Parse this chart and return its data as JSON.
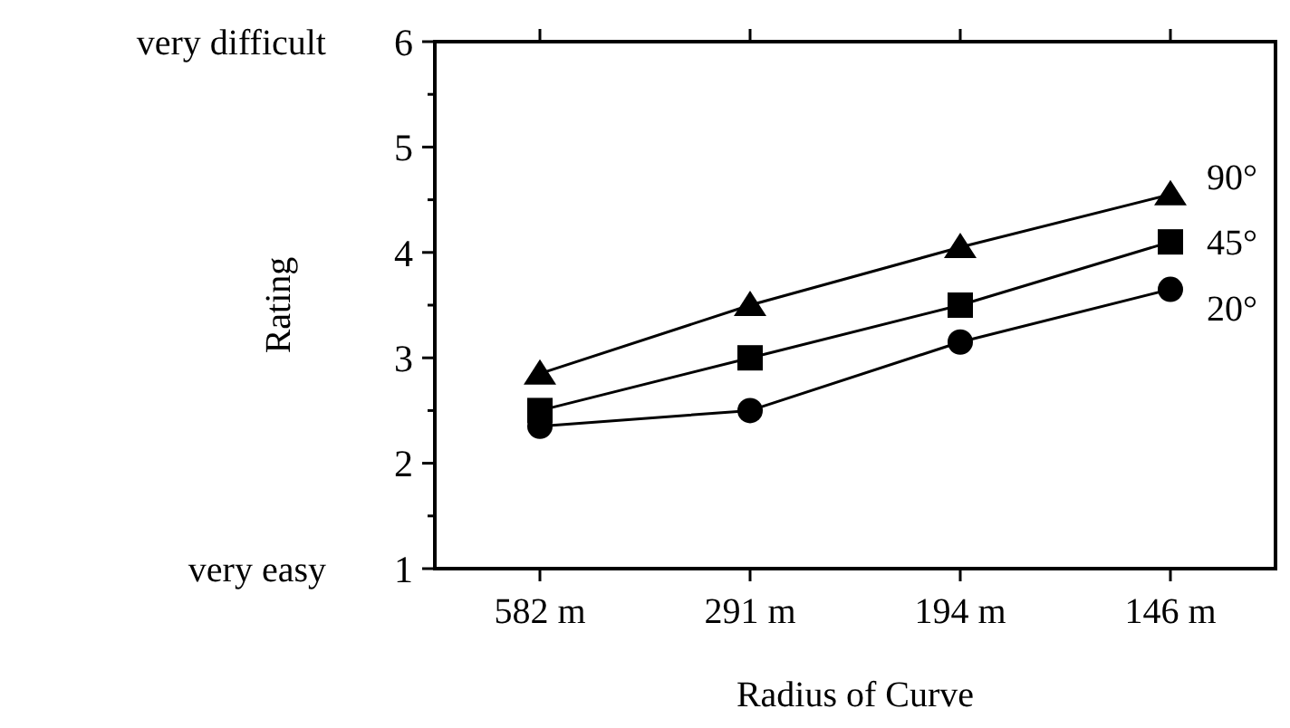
{
  "chart_data": {
    "type": "line",
    "xlabel": "Radius of Curve",
    "ylabel": "Rating",
    "categories": [
      "582 m",
      "291 m",
      "194 m",
      "146 m"
    ],
    "ylim": [
      1,
      6
    ],
    "yticks": [
      1,
      {
        "value": 1.5,
        "label": null
      },
      2,
      {
        "value": 2.5,
        "label": null
      },
      3,
      {
        "value": 3.5,
        "label": null
      },
      4,
      {
        "value": 4.5,
        "label": null
      },
      5,
      {
        "value": 5.5,
        "label": null
      },
      6
    ],
    "annotations": [
      "very difficult",
      "very easy"
    ],
    "grid": false,
    "line_style": "solid",
    "series": [
      {
        "name": "90°",
        "color": "#000000",
        "marker": "triangle",
        "values": [
          2.85,
          3.5,
          4.05,
          4.55
        ]
      },
      {
        "name": "45°",
        "color": "#000000",
        "marker": "square",
        "values": [
          2.5,
          3.0,
          3.5,
          4.1
        ]
      },
      {
        "name": "20°",
        "color": "#000000",
        "marker": "circle",
        "values": [
          2.35,
          2.5,
          3.15,
          3.65
        ]
      }
    ]
  }
}
